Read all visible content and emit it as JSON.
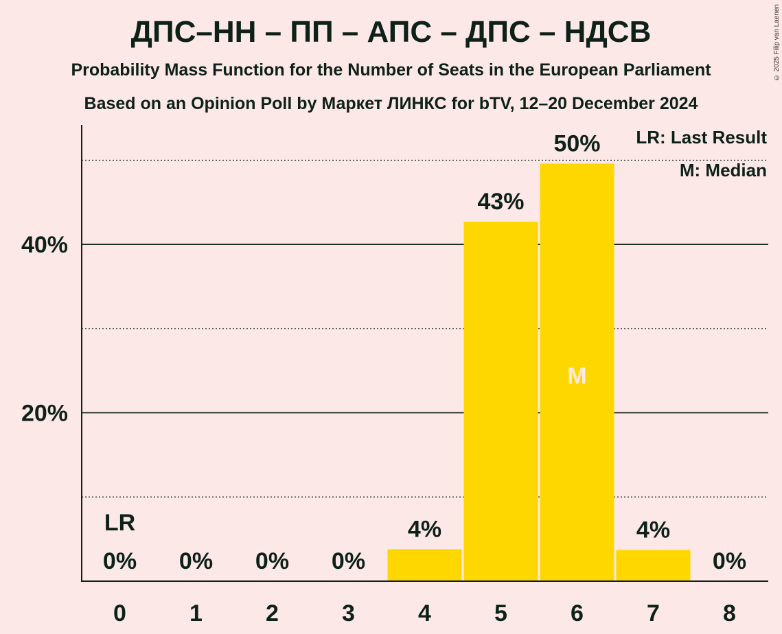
{
  "chart_data": {
    "type": "bar",
    "title": "ДПС–НН – ПП – АПС – ДПС – НДСВ",
    "subtitle": "Probability Mass Function for the Number of Seats in the European Parliament",
    "subtitle2": "Based on an Opinion Poll by Маркет ЛИНКС for bTV, 12–20 December 2024",
    "copyright": "© 2025 Filip van Laenen",
    "categories": [
      "0",
      "1",
      "2",
      "3",
      "4",
      "5",
      "6",
      "7",
      "8"
    ],
    "values": [
      0,
      0,
      0,
      0,
      3.8,
      42.7,
      49.6,
      3.7,
      0
    ],
    "value_labels": [
      "0%",
      "0%",
      "0%",
      "0%",
      "4%",
      "43%",
      "50%",
      "4%",
      "0%"
    ],
    "y_ticks": [
      {
        "value": 20,
        "label": "20%"
      },
      {
        "value": 40,
        "label": "40%"
      }
    ],
    "dotted_gridlines": [
      10,
      30,
      50
    ],
    "ylim": [
      0,
      54
    ],
    "last_result_index": 0,
    "last_result_marker": "LR",
    "median_index": 6,
    "median_marker": "M",
    "legend": [
      "LR: Last Result",
      "M: Median"
    ],
    "bar_color": "#ffd700",
    "median_text_color": "#fde8e8",
    "background": "#fde8e8"
  }
}
